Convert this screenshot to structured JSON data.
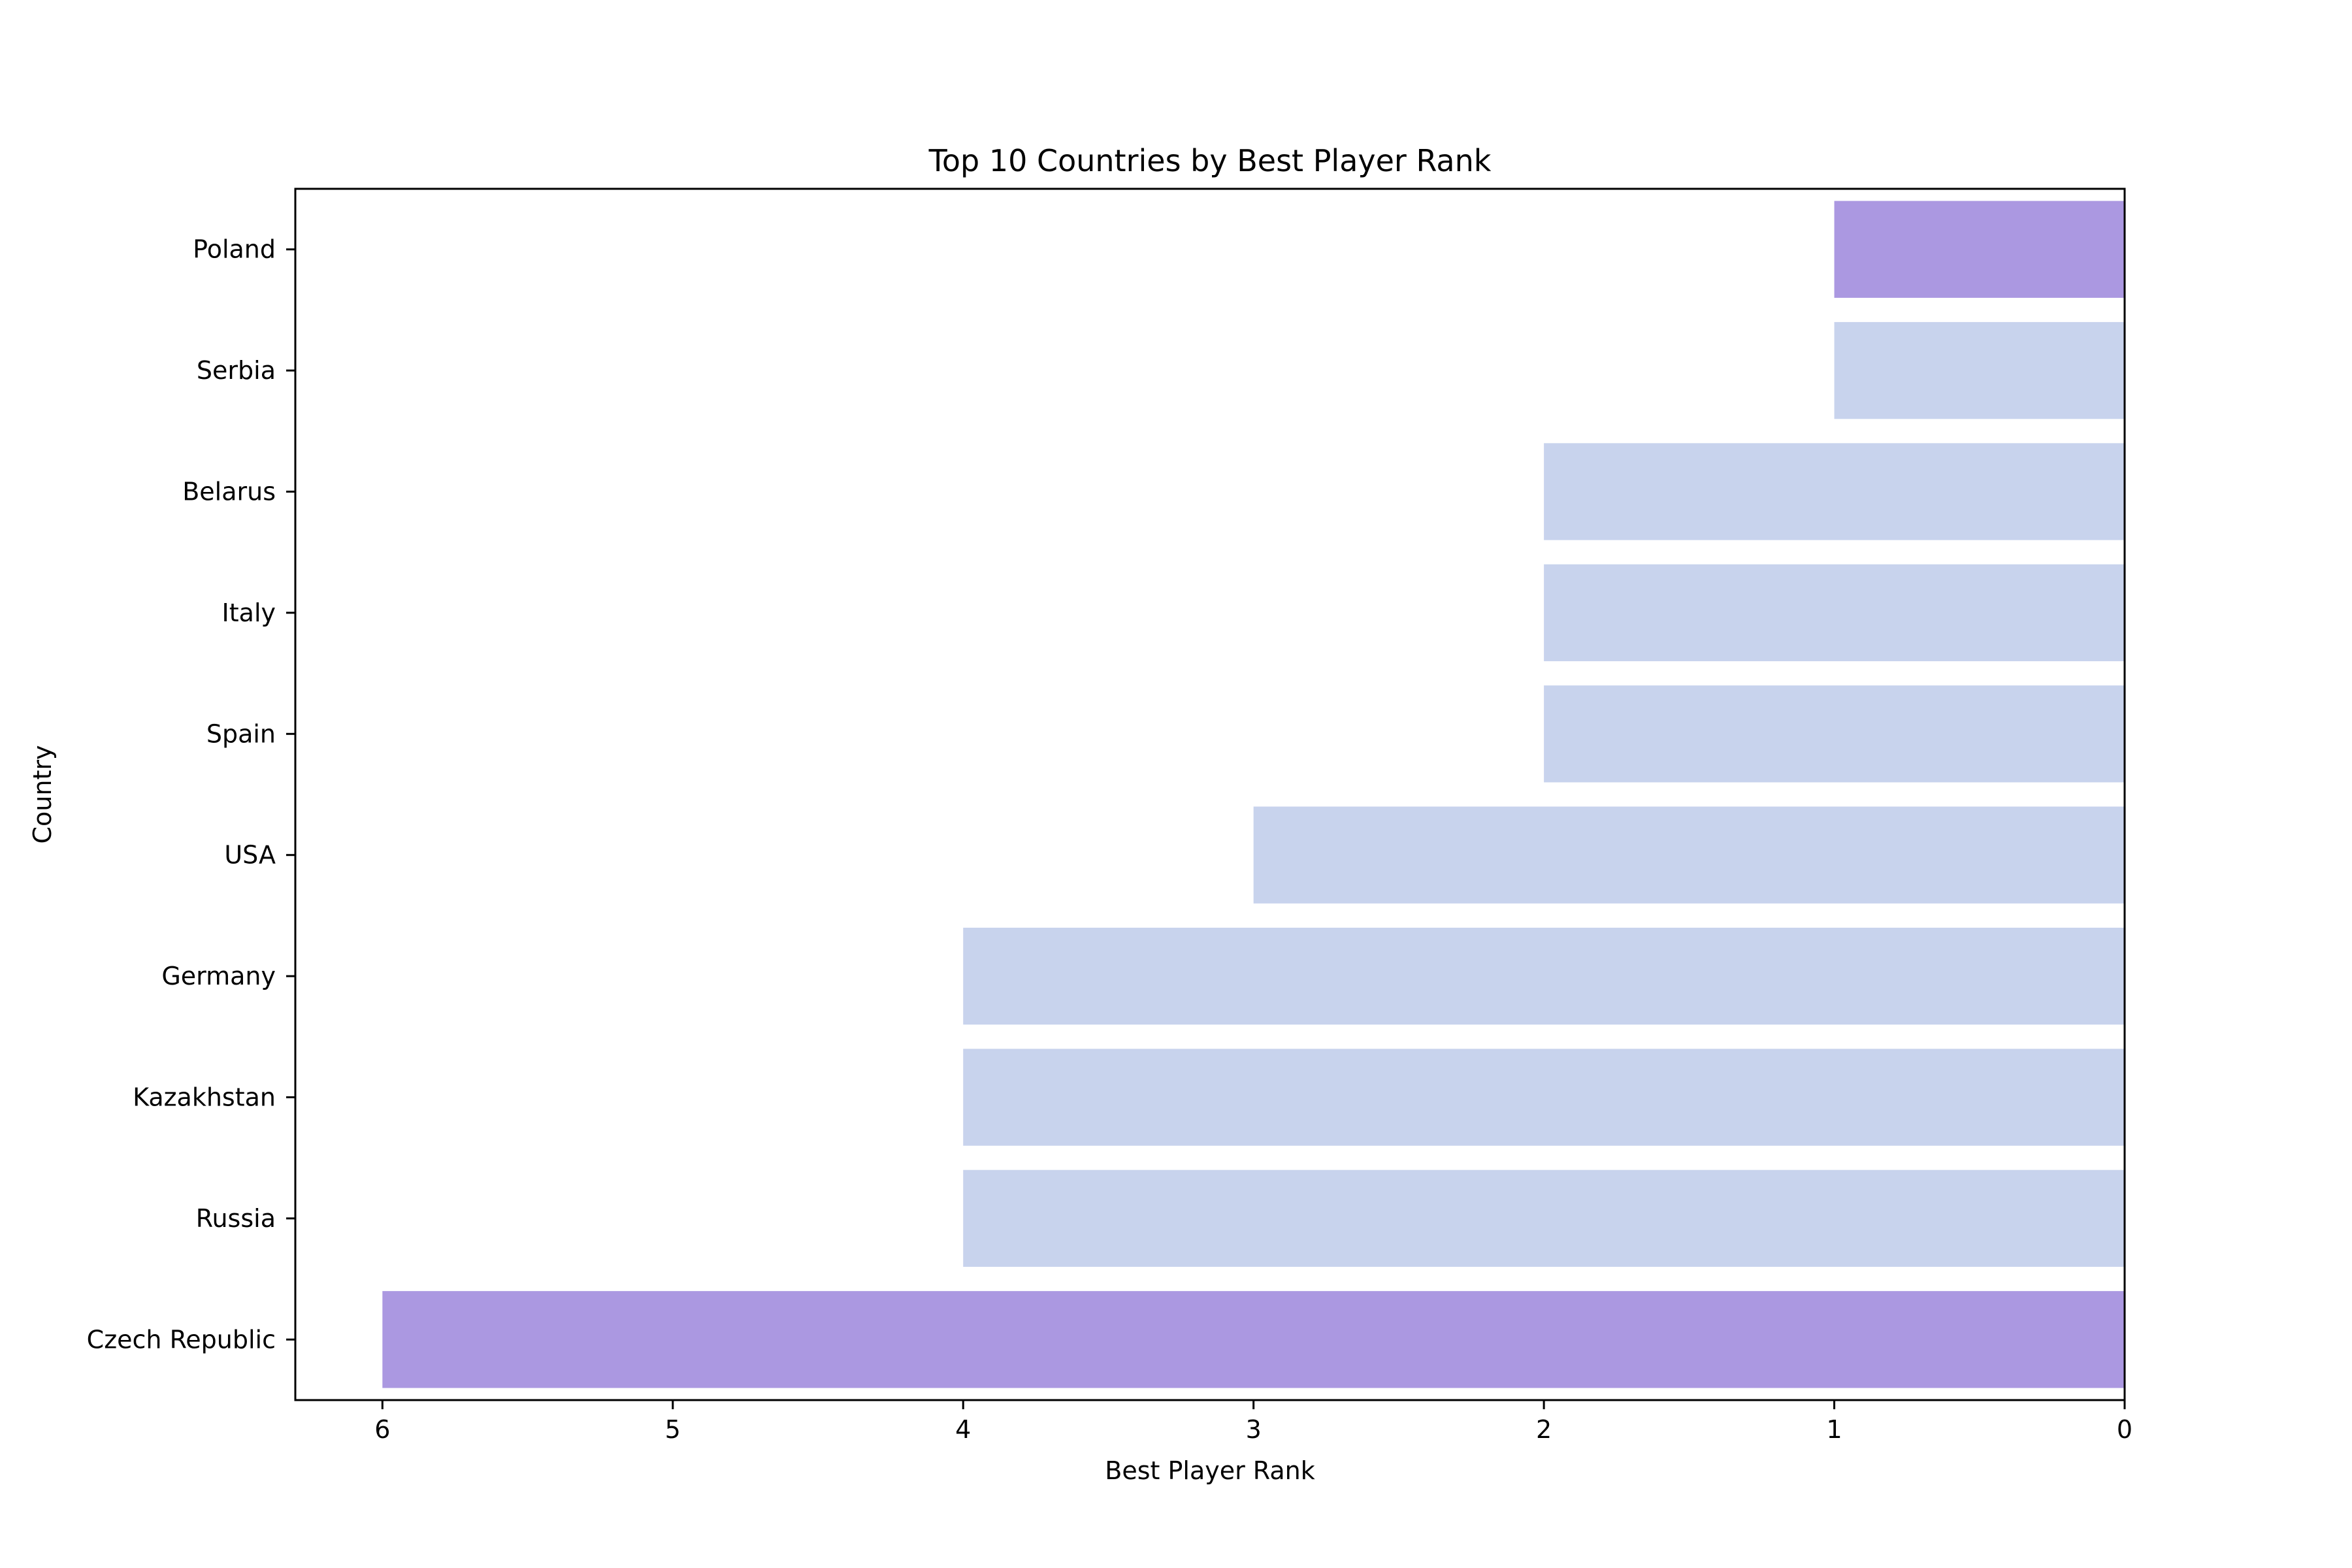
{
  "chart_data": {
    "type": "bar",
    "orientation": "horizontal",
    "title": "Top 10 Countries by Best Player Rank",
    "xlabel": "Best Player Rank",
    "ylabel": "Country",
    "categories": [
      "Poland",
      "Serbia",
      "Belarus",
      "Italy",
      "Spain",
      "USA",
      "Germany",
      "Kazakhstan",
      "Russia",
      "Czech Republic"
    ],
    "values": [
      1,
      1,
      2,
      2,
      2,
      3,
      4,
      4,
      4,
      6
    ],
    "xlim": [
      6.3,
      0
    ],
    "x_inverted": true,
    "xticks": [
      6,
      5,
      4,
      3,
      2,
      1,
      0
    ],
    "grid": false,
    "colors": {
      "highlight": "#ab98e1",
      "default": "#c8d3ed",
      "axis": "#000000"
    },
    "highlighted_categories": [
      "Poland",
      "Czech Republic"
    ]
  }
}
